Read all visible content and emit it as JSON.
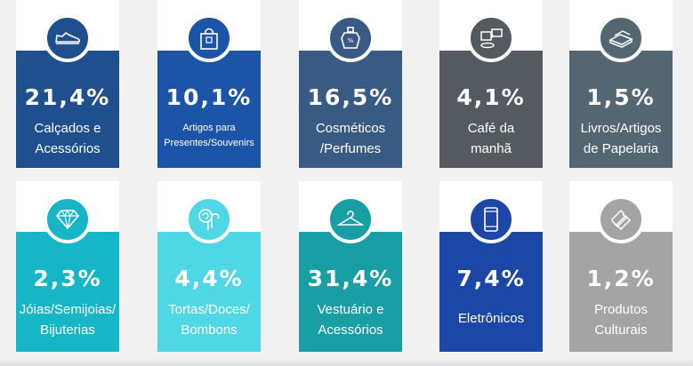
{
  "colors": {
    "row1": [
      "#1f4f8c",
      "#1c55a8",
      "#395a82",
      "#545a5f",
      "#556673"
    ],
    "row2": [
      "#17b6c6",
      "#4fd7e6",
      "#1a9ea6",
      "#1d47a6",
      "#a4a4a4"
    ]
  },
  "cards": [
    {
      "percent": "21,4%",
      "label_lines": [
        "Calçados e",
        "Acessórios"
      ],
      "icon": "sneaker-icon"
    },
    {
      "percent": "10,1%",
      "label_lines": [
        "Artigos para",
        "Presentes/Souvenirs"
      ],
      "icon": "gift-bag-icon"
    },
    {
      "percent": "16,5%",
      "label_lines": [
        "Cosméticos",
        "/Perfumes"
      ],
      "icon": "perfume-bottle-icon"
    },
    {
      "percent": "4,1%",
      "label_lines": [
        "Café da",
        "manhã"
      ],
      "icon": "coffee-icon"
    },
    {
      "percent": "1,5%",
      "label_lines": [
        "Livros/Artigos",
        "de Papelaria"
      ],
      "icon": "books-icon"
    },
    {
      "percent": "2,3%",
      "label_lines": [
        "Jóias/Semijoias/",
        "Bijuterias"
      ],
      "icon": "diamond-icon"
    },
    {
      "percent": "4,4%",
      "label_lines": [
        "Tortas/Doces/",
        "Bombons"
      ],
      "icon": "candy-icon"
    },
    {
      "percent": "31,4%",
      "label_lines": [
        "Vestuário e",
        "Acessórios"
      ],
      "icon": "hanger-icon"
    },
    {
      "percent": "7,4%",
      "label_lines": [
        "Eletrônicos"
      ],
      "icon": "smartphone-icon"
    },
    {
      "percent": "1,2%",
      "label_lines": [
        "Produtos",
        "Culturais"
      ],
      "icon": "tickets-icon"
    }
  ]
}
